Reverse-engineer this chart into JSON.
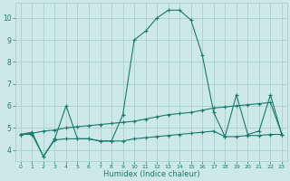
{
  "xlabel": "Humidex (Indice chaleur)",
  "x": [
    0,
    1,
    2,
    3,
    4,
    5,
    6,
    7,
    8,
    9,
    10,
    11,
    12,
    13,
    14,
    15,
    16,
    17,
    18,
    19,
    20,
    21,
    22,
    23
  ],
  "line1": [
    4.7,
    4.8,
    3.7,
    4.5,
    6.0,
    4.5,
    4.5,
    4.4,
    4.4,
    5.6,
    9.0,
    9.4,
    10.0,
    10.35,
    10.35,
    9.9,
    8.3,
    5.7,
    4.6,
    6.5,
    4.7,
    4.85,
    6.5,
    4.7
  ],
  "line2": [
    4.7,
    4.75,
    4.85,
    4.9,
    5.0,
    5.05,
    5.1,
    5.15,
    5.2,
    5.25,
    5.3,
    5.4,
    5.5,
    5.6,
    5.65,
    5.7,
    5.8,
    5.9,
    5.95,
    6.0,
    6.05,
    6.1,
    6.15,
    4.7
  ],
  "line3": [
    4.7,
    4.7,
    3.7,
    4.45,
    4.5,
    4.5,
    4.5,
    4.4,
    4.4,
    4.4,
    4.5,
    4.55,
    4.6,
    4.65,
    4.7,
    4.75,
    4.8,
    4.85,
    4.6,
    4.6,
    4.65,
    4.65,
    4.7,
    4.7
  ],
  "line_color": "#1a7a6e",
  "bg_color": "#cce8e8",
  "grid_color": "#aacfcf",
  "ylim": [
    3.5,
    10.7
  ],
  "yticks": [
    4,
    5,
    6,
    7,
    8,
    9,
    10
  ],
  "xlim": [
    -0.5,
    23.5
  ]
}
